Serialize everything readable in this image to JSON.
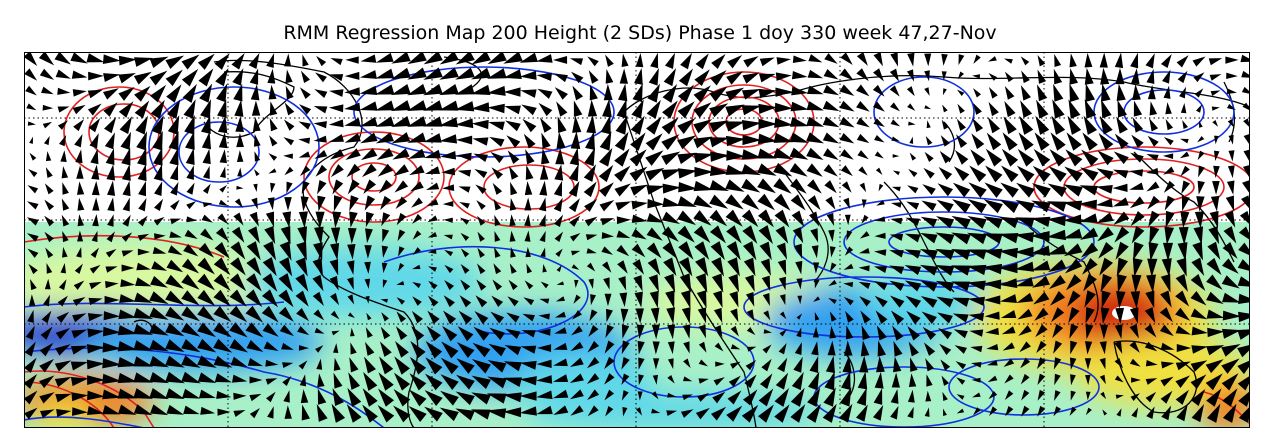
{
  "figure": {
    "title": "RMM Regression Map 200 Height (2 SDs) Phase 1 doy 330 week 47,27-Nov"
  },
  "colors": {
    "positive_contour": "#e02020",
    "negative_contour": "#1030e0",
    "coastline": "#000000",
    "wind_vectors": "#000000",
    "shading": [
      "#2040d0",
      "#30a0f0",
      "#60d8e8",
      "#a8f0c8",
      "#d8f8a0",
      "#f0e040",
      "#f08020",
      "#d02010",
      "#ffffff"
    ]
  },
  "map": {
    "region": "tropics and northern mid-latitudes, 0-360 longitude",
    "shading_field": "shaded anomaly (tropics only)",
    "contour_field": "200 hPa height regression (red positive, blue negative)",
    "vector_field": "wind regression arrows",
    "gridlines": "dotted",
    "colorbar": "none shown"
  }
}
